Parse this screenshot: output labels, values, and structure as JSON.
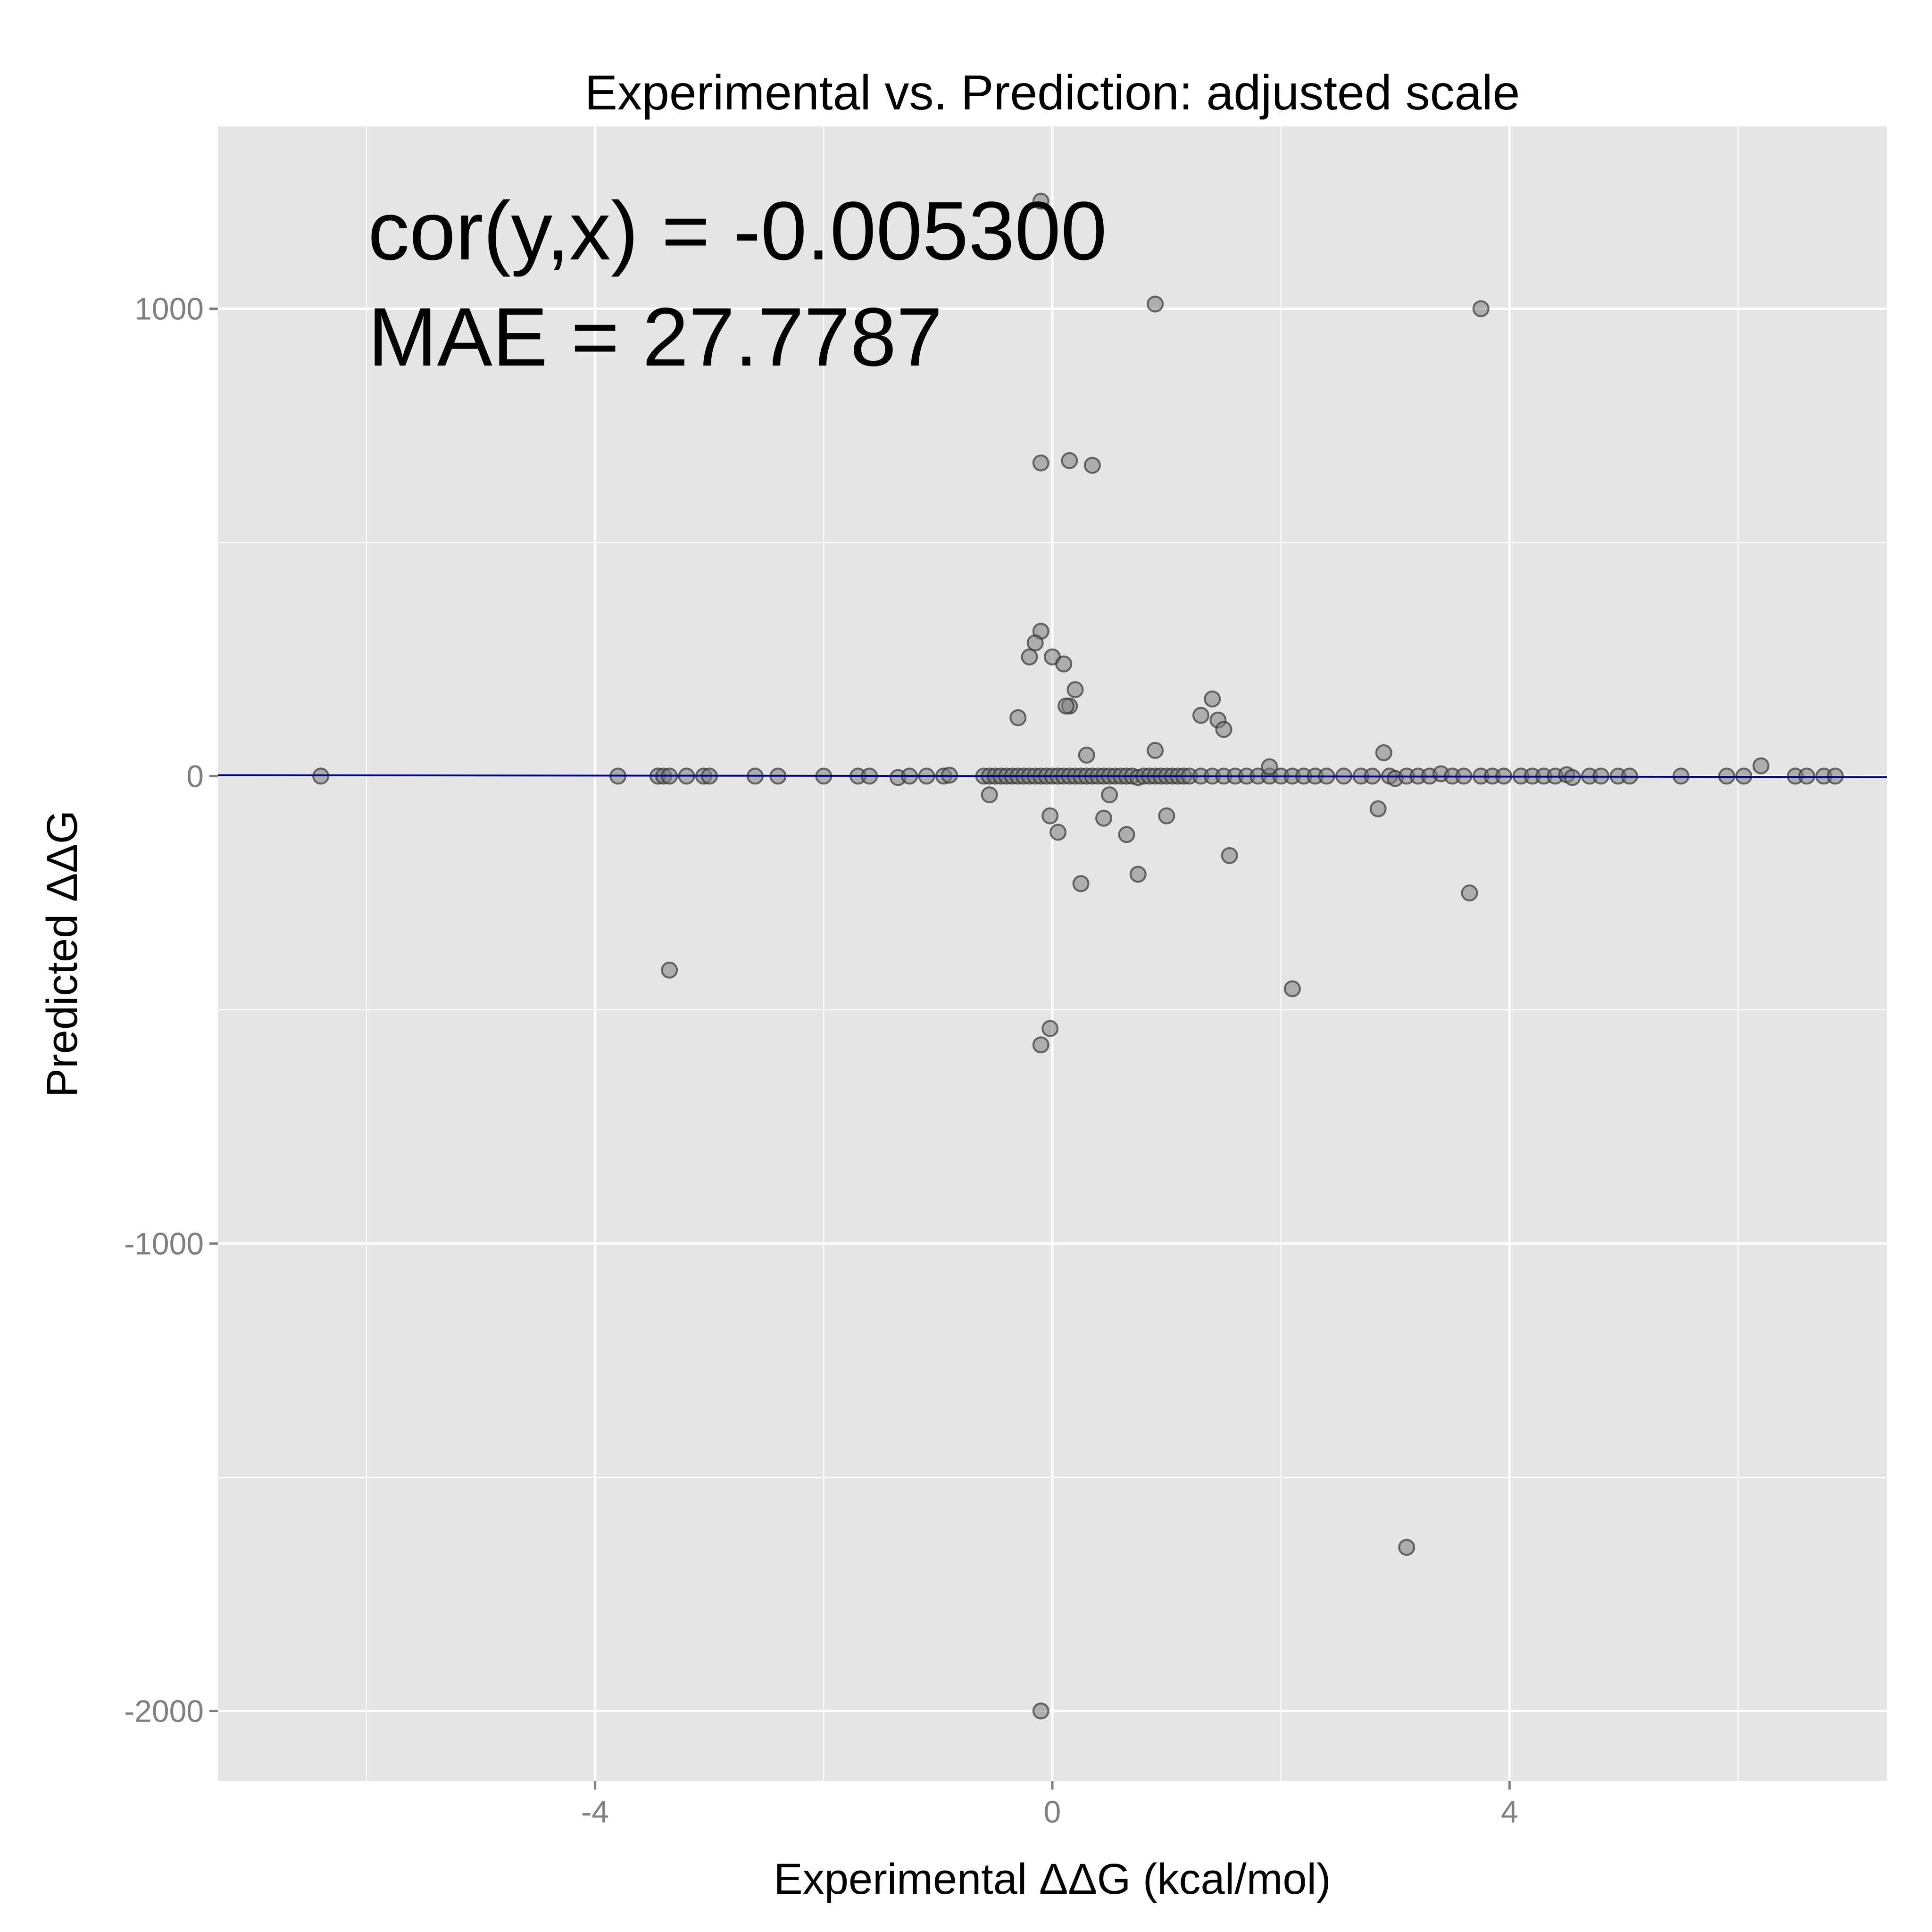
{
  "chart_data": {
    "type": "scatter",
    "title": "Experimental vs. Prediction: adjusted scale",
    "xlabel": "Experimental ΔΔG (kcal/mol)",
    "ylabel": "Predicted ΔΔG",
    "xlim": [
      -7.3,
      7.3
    ],
    "ylim": [
      -2150,
      1390
    ],
    "x_ticks": [
      -4,
      0,
      4
    ],
    "x_tick_labels": [
      "-4",
      "0",
      "4"
    ],
    "x_minor_ticks": [
      -6,
      -2,
      2,
      6
    ],
    "y_ticks": [
      -2000,
      -1000,
      0,
      1000
    ],
    "y_tick_labels": [
      "-2000",
      "-1000",
      "0",
      "1000"
    ],
    "y_minor_ticks": [
      -1500,
      -500,
      500
    ],
    "grid": true,
    "annotations": [
      "cor(y,x) = -0.005300",
      "MAE = 27.7787"
    ],
    "fit_line": {
      "x": [
        -7.3,
        7.3
      ],
      "y": [
        2,
        -2
      ]
    },
    "colors": {
      "panel": "#e5e5e5",
      "grid": "#ffffff",
      "point_fill": "#7f7f7f",
      "point_stroke": "#333333",
      "fit_line": "#00008b"
    },
    "series": [
      {
        "points": [
          [
            -6.4,
            0
          ],
          [
            -3.8,
            0
          ],
          [
            -3.45,
            0
          ],
          [
            -3.4,
            0
          ],
          [
            -3.35,
            0
          ],
          [
            -3.2,
            0
          ],
          [
            -3.05,
            0
          ],
          [
            -3.0,
            0
          ],
          [
            -2.6,
            0
          ],
          [
            -2.4,
            0
          ],
          [
            -2.0,
            0
          ],
          [
            -1.7,
            0
          ],
          [
            -1.6,
            0
          ],
          [
            -1.35,
            -3
          ],
          [
            -1.25,
            0
          ],
          [
            -1.1,
            0
          ],
          [
            -0.95,
            0
          ],
          [
            -0.9,
            2
          ],
          [
            -0.6,
            0
          ],
          [
            -0.55,
            0
          ],
          [
            -0.5,
            0
          ],
          [
            -0.45,
            0
          ],
          [
            -0.4,
            0
          ],
          [
            -0.35,
            0
          ],
          [
            -0.3,
            0
          ],
          [
            -0.25,
            0
          ],
          [
            -0.2,
            0
          ],
          [
            -0.15,
            0
          ],
          [
            -0.1,
            0
          ],
          [
            -0.05,
            0
          ],
          [
            0.0,
            0
          ],
          [
            0.05,
            0
          ],
          [
            0.1,
            0
          ],
          [
            0.15,
            0
          ],
          [
            0.2,
            0
          ],
          [
            0.25,
            0
          ],
          [
            0.3,
            0
          ],
          [
            0.35,
            0
          ],
          [
            0.4,
            0
          ],
          [
            0.45,
            0
          ],
          [
            0.5,
            0
          ],
          [
            0.55,
            0
          ],
          [
            0.6,
            0
          ],
          [
            0.65,
            0
          ],
          [
            0.7,
            0
          ],
          [
            0.75,
            -3
          ],
          [
            0.8,
            0
          ],
          [
            0.85,
            0
          ],
          [
            0.9,
            0
          ],
          [
            0.95,
            0
          ],
          [
            1.0,
            0
          ],
          [
            1.05,
            0
          ],
          [
            1.1,
            0
          ],
          [
            1.15,
            0
          ],
          [
            1.2,
            0
          ],
          [
            1.3,
            0
          ],
          [
            1.4,
            0
          ],
          [
            1.5,
            0
          ],
          [
            1.6,
            0
          ],
          [
            1.7,
            0
          ],
          [
            1.8,
            0
          ],
          [
            1.9,
            0
          ],
          [
            2.0,
            0
          ],
          [
            2.1,
            0
          ],
          [
            2.2,
            0
          ],
          [
            2.3,
            0
          ],
          [
            2.4,
            0
          ],
          [
            2.55,
            0
          ],
          [
            2.7,
            0
          ],
          [
            2.8,
            0
          ],
          [
            2.95,
            0
          ],
          [
            3.0,
            -5
          ],
          [
            3.1,
            0
          ],
          [
            3.2,
            0
          ],
          [
            3.3,
            0
          ],
          [
            3.4,
            5
          ],
          [
            3.5,
            0
          ],
          [
            3.6,
            0
          ],
          [
            3.75,
            0
          ],
          [
            3.85,
            0
          ],
          [
            3.95,
            0
          ],
          [
            4.1,
            0
          ],
          [
            4.2,
            0
          ],
          [
            4.3,
            0
          ],
          [
            4.4,
            0
          ],
          [
            4.5,
            3
          ],
          [
            4.55,
            -3
          ],
          [
            4.7,
            0
          ],
          [
            4.8,
            0
          ],
          [
            4.95,
            0
          ],
          [
            5.05,
            0
          ],
          [
            5.5,
            0
          ],
          [
            5.9,
            0
          ],
          [
            6.05,
            0
          ],
          [
            6.2,
            22
          ],
          [
            6.5,
            0
          ],
          [
            6.6,
            0
          ],
          [
            6.75,
            0
          ],
          [
            6.85,
            0
          ],
          [
            1.9,
            20
          ],
          [
            2.9,
            50
          ],
          [
            -0.1,
            1230
          ],
          [
            0.9,
            1010
          ],
          [
            3.75,
            1000
          ],
          [
            -0.1,
            670
          ],
          [
            0.15,
            675
          ],
          [
            0.35,
            665
          ],
          [
            -0.1,
            310
          ],
          [
            -0.15,
            285
          ],
          [
            -0.2,
            255
          ],
          [
            0.0,
            255
          ],
          [
            0.1,
            240
          ],
          [
            0.2,
            185
          ],
          [
            0.15,
            150
          ],
          [
            0.12,
            150
          ],
          [
            1.4,
            165
          ],
          [
            1.3,
            130
          ],
          [
            1.45,
            120
          ],
          [
            1.5,
            100
          ],
          [
            -0.3,
            125
          ],
          [
            0.3,
            45
          ],
          [
            0.9,
            55
          ],
          [
            0.5,
            -40
          ],
          [
            -0.55,
            -40
          ],
          [
            -0.02,
            -85
          ],
          [
            0.05,
            -120
          ],
          [
            0.45,
            -90
          ],
          [
            0.65,
            -125
          ],
          [
            1.0,
            -85
          ],
          [
            2.85,
            -70
          ],
          [
            1.55,
            -170
          ],
          [
            0.25,
            -230
          ],
          [
            0.75,
            -210
          ],
          [
            3.65,
            -250
          ],
          [
            -3.35,
            -415
          ],
          [
            2.1,
            -455
          ],
          [
            -0.02,
            -540
          ],
          [
            -0.1,
            -575
          ],
          [
            3.1,
            -1650
          ],
          [
            -0.1,
            -2000
          ]
        ]
      }
    ]
  }
}
